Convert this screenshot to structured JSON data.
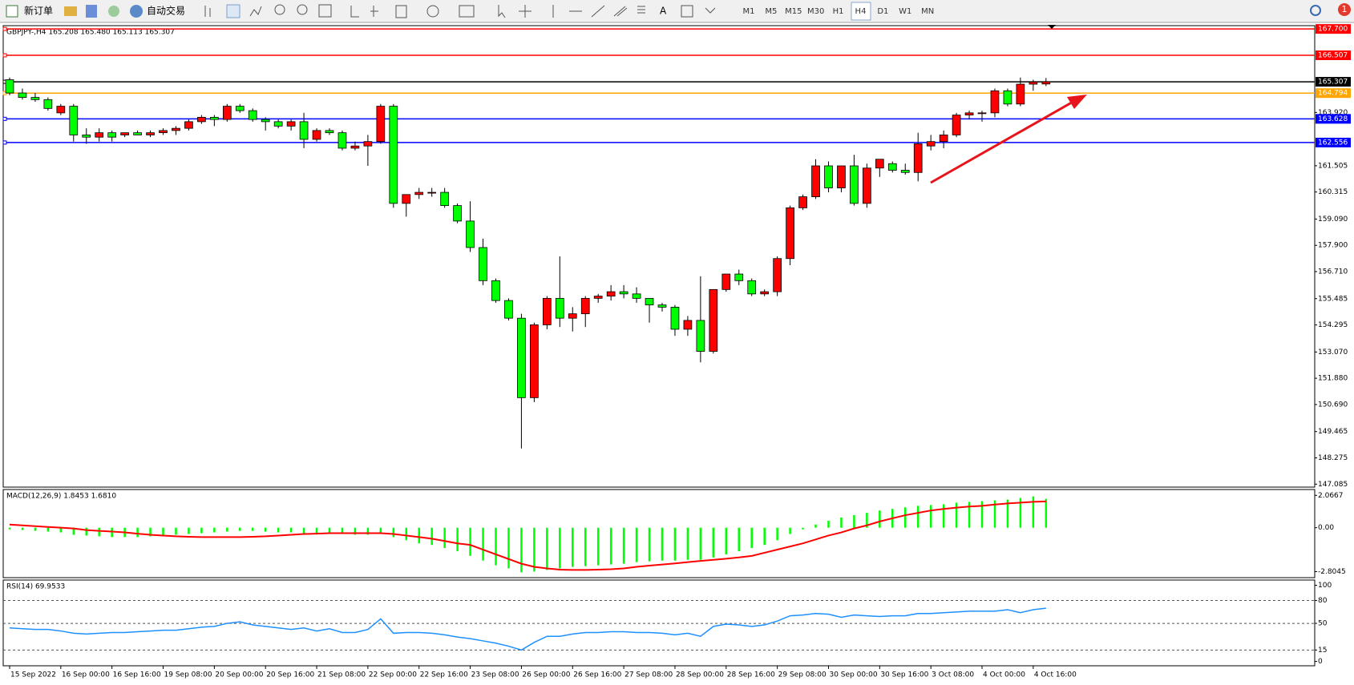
{
  "toolbar": {
    "new_order": "新订单",
    "auto_trading": "自动交易",
    "timeframes": [
      "M1",
      "M5",
      "M15",
      "M30",
      "H1",
      "H4",
      "D1",
      "W1",
      "MN"
    ],
    "notifications": "1"
  },
  "chart_data": [
    {
      "type": "candlestick",
      "title": "GBPJPY-,H4  165.208 165.480 165.113 165.307",
      "up_color": "#ff0000",
      "down_color": "#00ff00",
      "open": [
        165.4,
        164.8,
        164.6,
        164.5,
        163.9,
        164.2,
        162.9,
        162.8,
        163.0,
        162.9,
        163.0,
        162.9,
        163.0,
        163.1,
        163.2,
        163.5,
        163.7,
        163.6,
        164.2,
        164.0,
        163.6,
        163.5,
        163.3,
        163.5,
        162.7,
        163.1,
        163.0,
        162.3,
        162.4,
        162.6,
        164.2,
        159.8,
        160.2,
        160.3,
        160.3,
        159.7,
        159.0,
        157.8,
        156.3,
        155.4,
        154.6,
        151.0,
        154.3,
        155.5,
        154.6,
        154.8,
        155.5,
        155.6,
        155.8,
        155.7,
        155.5,
        155.2,
        155.1,
        154.1,
        154.5,
        153.1,
        155.9,
        156.6,
        156.3,
        155.7,
        155.8,
        157.3,
        159.6,
        160.1,
        161.5,
        160.5,
        161.5,
        159.8,
        161.4,
        161.6,
        161.3,
        161.2,
        162.4,
        162.6,
        162.9,
        163.8,
        163.9,
        163.9,
        164.9,
        164.3,
        165.2,
        165.208
      ],
      "high": [
        165.5,
        165.0,
        164.8,
        164.6,
        164.3,
        164.3,
        163.2,
        163.2,
        163.1,
        163.0,
        163.1,
        163.1,
        163.2,
        163.3,
        163.6,
        163.8,
        163.8,
        164.3,
        164.3,
        164.1,
        163.7,
        163.6,
        163.6,
        163.9,
        163.2,
        163.2,
        163.1,
        162.6,
        162.9,
        164.3,
        164.3,
        160.2,
        160.5,
        160.5,
        160.5,
        159.8,
        159.9,
        158.2,
        156.4,
        155.5,
        154.8,
        154.4,
        155.6,
        157.4,
        155.1,
        155.6,
        155.7,
        156.1,
        156.1,
        156.0,
        155.5,
        155.3,
        155.2,
        154.7,
        156.5,
        155.9,
        156.6,
        156.8,
        156.4,
        155.9,
        157.4,
        159.7,
        160.2,
        161.8,
        161.7,
        161.5,
        162.0,
        161.6,
        161.8,
        161.7,
        161.6,
        163.0,
        162.9,
        163.1,
        163.9,
        164.0,
        164.0,
        165.0,
        165.0,
        165.5,
        165.4,
        165.48
      ],
      "low": [
        164.7,
        164.5,
        164.4,
        164.0,
        163.8,
        162.6,
        162.5,
        162.6,
        162.6,
        162.8,
        162.9,
        162.8,
        162.9,
        162.9,
        163.1,
        163.4,
        163.3,
        163.5,
        163.9,
        163.5,
        163.1,
        163.2,
        163.1,
        162.3,
        162.6,
        162.9,
        162.2,
        162.2,
        161.5,
        162.5,
        159.6,
        159.2,
        160.0,
        160.1,
        159.6,
        158.9,
        157.6,
        156.1,
        155.3,
        154.5,
        148.7,
        150.8,
        154.1,
        154.2,
        154.0,
        154.2,
        155.3,
        155.4,
        155.5,
        155.3,
        154.4,
        154.9,
        153.8,
        153.8,
        152.6,
        153.0,
        155.8,
        156.1,
        155.6,
        155.6,
        155.6,
        157.0,
        159.5,
        160.0,
        160.3,
        160.3,
        159.7,
        159.6,
        161.0,
        161.2,
        161.1,
        160.8,
        162.2,
        162.3,
        162.8,
        163.6,
        163.5,
        163.7,
        164.2,
        164.2,
        164.9,
        165.113
      ],
      "close": [
        164.8,
        164.6,
        164.5,
        164.1,
        164.2,
        162.9,
        162.8,
        163.0,
        162.8,
        163.0,
        162.9,
        163.0,
        163.1,
        163.2,
        163.5,
        163.7,
        163.6,
        164.2,
        164.0,
        163.6,
        163.5,
        163.3,
        163.5,
        162.7,
        163.1,
        163.0,
        162.3,
        162.4,
        162.6,
        164.2,
        159.8,
        160.2,
        160.3,
        160.3,
        159.7,
        159.0,
        157.8,
        156.3,
        155.4,
        154.6,
        151.0,
        154.3,
        155.5,
        154.6,
        154.8,
        155.5,
        155.6,
        155.8,
        155.7,
        155.5,
        155.2,
        155.1,
        154.1,
        154.5,
        153.1,
        155.9,
        156.6,
        156.3,
        155.7,
        155.8,
        157.3,
        159.6,
        160.1,
        161.5,
        160.5,
        161.5,
        159.8,
        161.4,
        161.8,
        161.3,
        161.2,
        162.5,
        162.6,
        162.9,
        163.8,
        163.9,
        163.9,
        164.9,
        164.3,
        165.2,
        165.3,
        165.307
      ],
      "xlim": [
        -0.5,
        102
      ],
      "xticks": [
        {
          "value": 0,
          "label": "15 Sep 2022"
        },
        {
          "value": 4,
          "label": "16 Sep 00:00"
        },
        {
          "value": 8,
          "label": "16 Sep 16:00"
        },
        {
          "value": 12,
          "label": "19 Sep 08:00"
        },
        {
          "value": 16,
          "label": "20 Sep 00:00"
        },
        {
          "value": 20,
          "label": "20 Sep 16:00"
        },
        {
          "value": 24,
          "label": "21 Sep 08:00"
        },
        {
          "value": 28,
          "label": "22 Sep 00:00"
        },
        {
          "value": 32,
          "label": "22 Sep 16:00"
        },
        {
          "value": 36,
          "label": "23 Sep 08:00"
        },
        {
          "value": 40,
          "label": "26 Sep 00:00"
        },
        {
          "value": 44,
          "label": "26 Sep 16:00"
        },
        {
          "value": 48,
          "label": "27 Sep 08:00"
        },
        {
          "value": 52,
          "label": "28 Sep 00:00"
        },
        {
          "value": 56,
          "label": "28 Sep 16:00"
        },
        {
          "value": 60,
          "label": "29 Sep 08:00"
        },
        {
          "value": 64,
          "label": "30 Sep 00:00"
        },
        {
          "value": 68,
          "label": "30 Sep 16:00"
        },
        {
          "value": 72,
          "label": "3 Oct 08:00"
        },
        {
          "value": 76,
          "label": "4 Oct 00:00"
        },
        {
          "value": 80,
          "label": "4 Oct 16:00"
        }
      ],
      "ylim": [
        146.95,
        167.85
      ],
      "yticks": [
        147.085,
        148.275,
        149.465,
        {
          "value": 150.69,
          "label": "150.690"
        },
        {
          "value": 151.88,
          "label": "151.880"
        },
        {
          "value": 153.07,
          "label": "153.070"
        },
        154.295,
        155.485,
        {
          "value": 156.71,
          "label": "156.710"
        },
        {
          "value": 157.9,
          "label": "157.900"
        },
        {
          "value": 159.09,
          "label": "159.090"
        },
        160.315,
        161.505,
        {
          "value": 163.92,
          "label": "163.920"
        }
      ],
      "price_lines": [
        {
          "value": 167.7,
          "label": "167.700",
          "color": "#ff0000"
        },
        {
          "value": 166.507,
          "label": "166.507",
          "color": "#ff0000"
        },
        {
          "value": 165.307,
          "label": "165.307",
          "color": "#000000"
        },
        {
          "value": 164.794,
          "label": "164.794",
          "color": "#ffa500"
        },
        {
          "value": 163.628,
          "label": "163.628",
          "color": "#0000ff"
        },
        {
          "value": 162.556,
          "label": "162.556",
          "color": "#0000ff"
        }
      ]
    },
    {
      "type": "macd",
      "title": "MACD(12,26,9) 1.8453 1.6810",
      "color": "#00ff00",
      "signal_color": "#ff0000",
      "values": [
        -0.1,
        -0.15,
        -0.2,
        -0.25,
        -0.3,
        -0.45,
        -0.5,
        -0.55,
        -0.6,
        -0.6,
        -0.6,
        -0.55,
        -0.5,
        -0.45,
        -0.4,
        -0.35,
        -0.3,
        -0.25,
        -0.2,
        -0.2,
        -0.25,
        -0.3,
        -0.3,
        -0.35,
        -0.35,
        -0.35,
        -0.4,
        -0.45,
        -0.45,
        -0.3,
        -0.6,
        -0.8,
        -1.0,
        -1.1,
        -1.3,
        -1.5,
        -1.8,
        -2.1,
        -2.4,
        -2.6,
        -2.85,
        -2.8,
        -2.7,
        -2.6,
        -2.5,
        -2.45,
        -2.4,
        -2.35,
        -2.3,
        -2.2,
        -2.15,
        -2.1,
        -2.1,
        -2.05,
        -2.05,
        -1.9,
        -1.7,
        -1.5,
        -1.3,
        -1.1,
        -0.8,
        -0.4,
        -0.1,
        0.2,
        0.45,
        0.65,
        0.8,
        0.95,
        1.1,
        1.2,
        1.3,
        1.4,
        1.45,
        1.5,
        1.6,
        1.65,
        1.7,
        1.75,
        1.8,
        1.9,
        2.0,
        1.8453
      ],
      "signal": [
        0.2,
        0.15,
        0.1,
        0.05,
        0,
        -0.05,
        -0.15,
        -0.2,
        -0.25,
        -0.3,
        -0.38,
        -0.45,
        -0.5,
        -0.55,
        -0.58,
        -0.6,
        -0.6,
        -0.6,
        -0.6,
        -0.58,
        -0.55,
        -0.5,
        -0.45,
        -0.4,
        -0.38,
        -0.35,
        -0.35,
        -0.35,
        -0.35,
        -0.35,
        -0.4,
        -0.5,
        -0.6,
        -0.7,
        -0.85,
        -1.0,
        -1.1,
        -1.4,
        -1.7,
        -2.0,
        -2.3,
        -2.5,
        -2.6,
        -2.68,
        -2.7,
        -2.7,
        -2.68,
        -2.65,
        -2.6,
        -2.5,
        -2.42,
        -2.35,
        -2.28,
        -2.2,
        -2.12,
        -2.05,
        -1.98,
        -1.9,
        -1.8,
        -1.6,
        -1.4,
        -1.2,
        -1.0,
        -0.75,
        -0.5,
        -0.3,
        -0.05,
        0.15,
        0.4,
        0.6,
        0.8,
        0.95,
        1.1,
        1.2,
        1.28,
        1.35,
        1.4,
        1.48,
        1.55,
        1.6,
        1.65,
        1.681
      ],
      "xlim": [
        -0.5,
        102
      ],
      "ylim": [
        -3.19,
        2.44
      ],
      "yticks": [
        2.0667,
        {
          "value": 0,
          "label": "0.00"
        },
        -2.8045
      ]
    },
    {
      "type": "line",
      "title": "RSI(14) 69.9533",
      "color": "#1e90ff",
      "values": [
        44,
        43,
        42,
        42,
        40,
        37,
        36,
        37,
        38,
        38,
        39,
        40,
        41,
        41,
        43,
        45,
        46,
        50,
        52,
        48,
        46,
        44,
        42,
        44,
        40,
        43,
        38,
        38,
        42,
        56,
        37,
        38,
        38,
        37,
        35,
        32,
        30,
        27,
        24,
        20,
        15,
        25,
        33,
        33,
        36,
        38,
        38,
        39,
        39,
        38,
        38,
        37,
        35,
        37,
        33,
        46,
        49,
        48,
        46,
        48,
        53,
        60,
        61,
        63,
        62,
        58,
        61,
        60,
        59,
        60,
        60,
        63,
        63,
        64,
        65,
        66,
        66,
        66,
        68,
        64,
        68,
        69.9533
      ],
      "xlim": [
        -0.5,
        102
      ],
      "ylim": [
        -5.7,
        106.9
      ],
      "yticks": [
        0,
        15,
        50,
        80,
        100
      ],
      "levels": [
        15,
        50,
        80
      ]
    }
  ]
}
